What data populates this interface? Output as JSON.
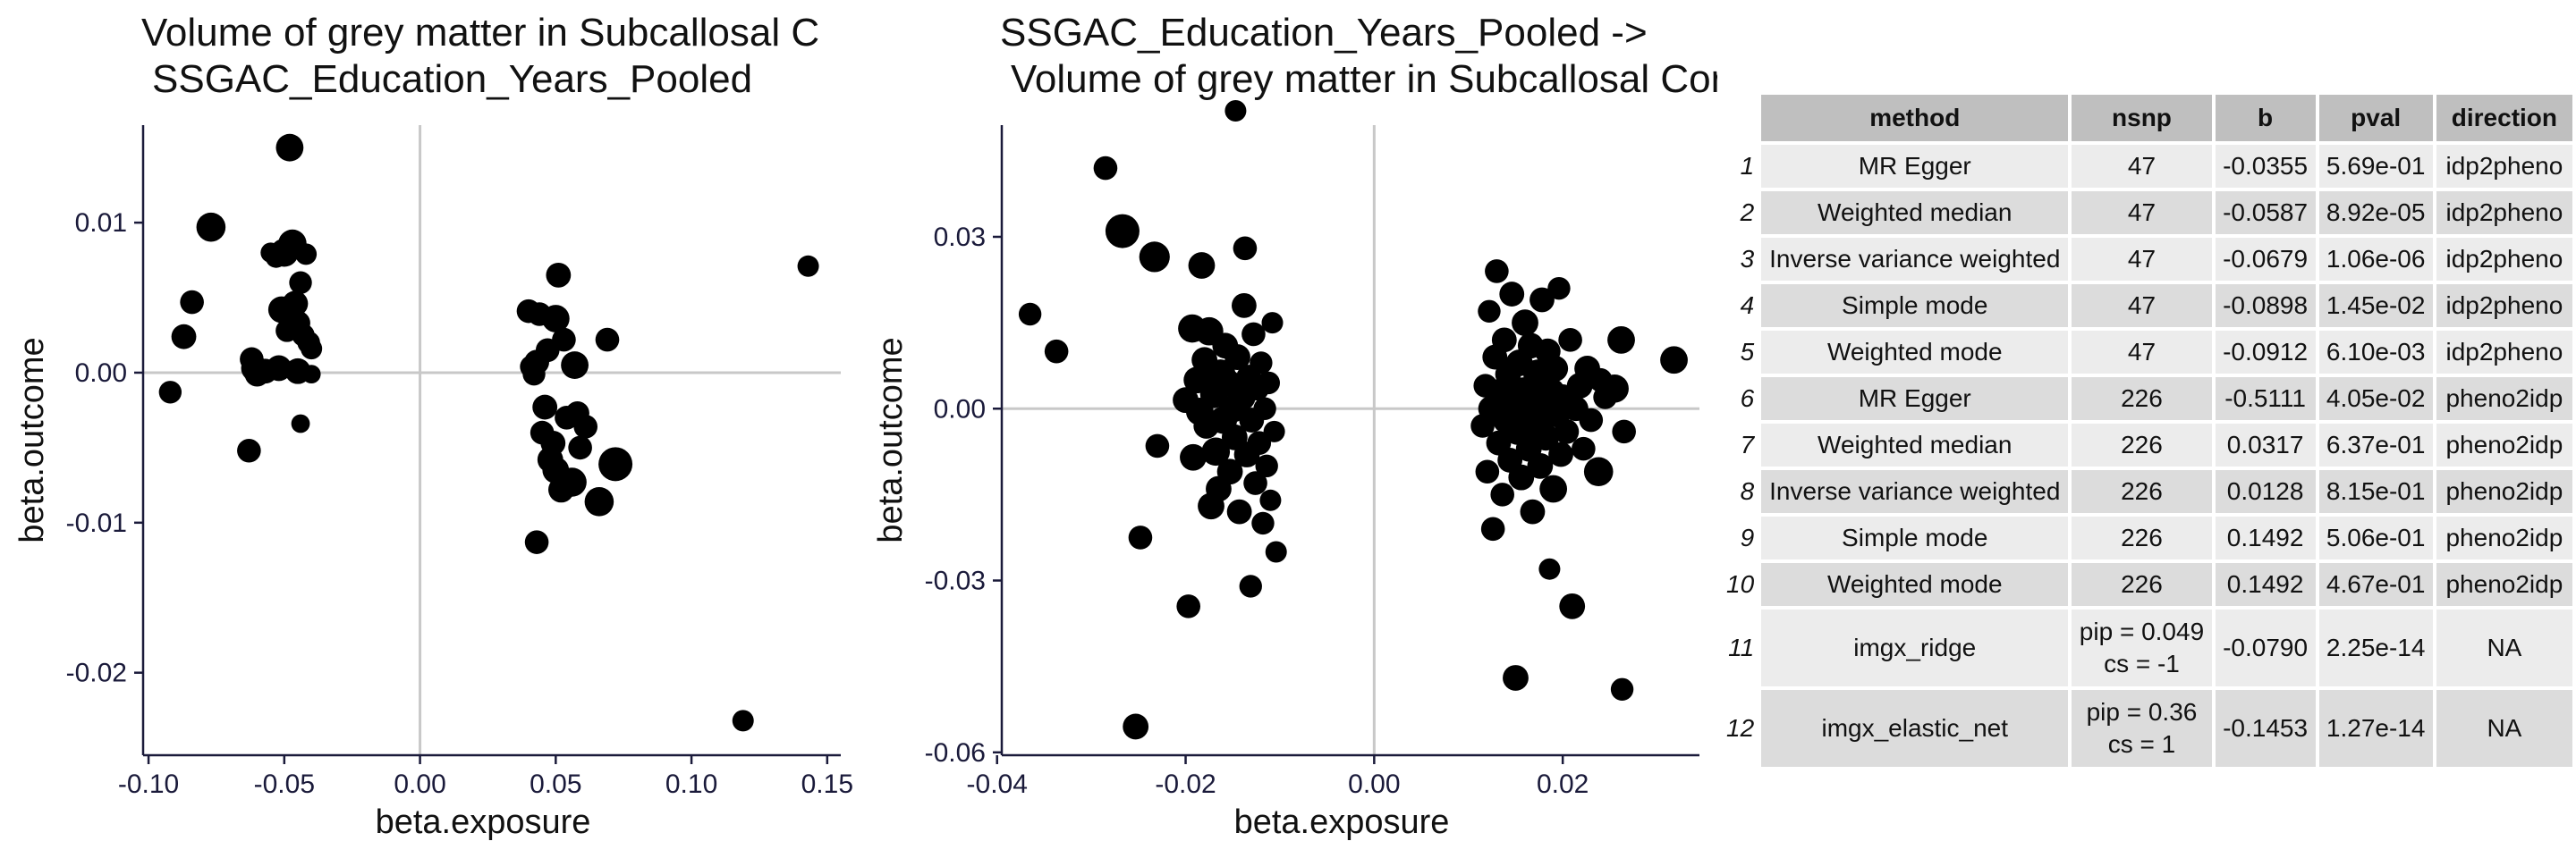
{
  "chart_data": [
    {
      "type": "scatter",
      "title": [
        "Volume of grey matter in Subcallosal C",
        "SSGAC_Education_Years_Pooled"
      ],
      "xlabel": "beta.exposure",
      "ylabel": "beta.outcome",
      "xlim": [
        -0.102,
        0.155
      ],
      "ylim": [
        -0.0255,
        0.0165
      ],
      "xticks": [
        -0.1,
        -0.05,
        0.0,
        0.05,
        0.1,
        0.15
      ],
      "xtick_labels": [
        "-0.10",
        "-0.05",
        "0.00",
        "0.05",
        "0.10",
        "0.15"
      ],
      "yticks": [
        -0.02,
        -0.01,
        0.0,
        0.01
      ],
      "ytick_labels": [
        "-0.02",
        "-0.01",
        "0.00",
        "0.01"
      ],
      "reference_lines": {
        "x": 0,
        "y": 0
      },
      "grid": false,
      "point_color": "#000000",
      "points": [
        {
          "x": -0.092,
          "y": -0.0013,
          "w": 0.3
        },
        {
          "x": -0.087,
          "y": 0.0024,
          "w": 0.4
        },
        {
          "x": -0.084,
          "y": 0.0047,
          "w": 0.35
        },
        {
          "x": -0.077,
          "y": 0.0097,
          "w": 0.65
        },
        {
          "x": -0.063,
          "y": -0.0052,
          "w": 0.35
        },
        {
          "x": -0.062,
          "y": 0.0009,
          "w": 0.35
        },
        {
          "x": -0.061,
          "y": 0.0003,
          "w": 0.5
        },
        {
          "x": -0.06,
          "y": -0.0001,
          "w": 0.4
        },
        {
          "x": -0.057,
          "y": 0.0001,
          "w": 0.4
        },
        {
          "x": -0.055,
          "y": 0.008,
          "w": 0.2
        },
        {
          "x": -0.053,
          "y": 0.0077,
          "w": 0.25
        },
        {
          "x": -0.052,
          "y": 0.0003,
          "w": 0.45
        },
        {
          "x": -0.051,
          "y": 0.0042,
          "w": 0.5
        },
        {
          "x": -0.05,
          "y": 0.008,
          "w": 0.6
        },
        {
          "x": -0.049,
          "y": 0.0028,
          "w": 0.3
        },
        {
          "x": -0.048,
          "y": 0.015,
          "w": 0.55
        },
        {
          "x": -0.047,
          "y": 0.0086,
          "w": 0.6
        },
        {
          "x": -0.046,
          "y": 0.0046,
          "w": 0.45
        },
        {
          "x": -0.045,
          "y": 0.0033,
          "w": 0.4
        },
        {
          "x": -0.045,
          "y": 0.0001,
          "w": 0.45
        },
        {
          "x": -0.044,
          "y": 0.006,
          "w": 0.3
        },
        {
          "x": -0.044,
          "y": -0.0034,
          "w": 0.15
        },
        {
          "x": -0.043,
          "y": 0.0025,
          "w": 0.3
        },
        {
          "x": -0.042,
          "y": 0.0079,
          "w": 0.25
        },
        {
          "x": -0.041,
          "y": 0.002,
          "w": 0.3
        },
        {
          "x": -0.04,
          "y": 0.0016,
          "w": 0.25
        },
        {
          "x": -0.04,
          "y": -0.0001,
          "w": 0.15
        },
        {
          "x": 0.04,
          "y": 0.0041,
          "w": 0.35
        },
        {
          "x": 0.041,
          "y": 0.0004,
          "w": 0.3
        },
        {
          "x": 0.042,
          "y": -0.0001,
          "w": 0.3
        },
        {
          "x": 0.043,
          "y": -0.0113,
          "w": 0.35
        },
        {
          "x": 0.043,
          "y": 0.0007,
          "w": 0.4
        },
        {
          "x": 0.044,
          "y": 0.0039,
          "w": 0.35
        },
        {
          "x": 0.045,
          "y": -0.004,
          "w": 0.35
        },
        {
          "x": 0.046,
          "y": -0.0023,
          "w": 0.4
        },
        {
          "x": 0.047,
          "y": 0.0015,
          "w": 0.35
        },
        {
          "x": 0.048,
          "y": -0.0058,
          "w": 0.45
        },
        {
          "x": 0.049,
          "y": -0.0047,
          "w": 0.4
        },
        {
          "x": 0.05,
          "y": 0.0036,
          "w": 0.55
        },
        {
          "x": 0.05,
          "y": -0.0065,
          "w": 0.5
        },
        {
          "x": 0.051,
          "y": 0.0065,
          "w": 0.4
        },
        {
          "x": 0.052,
          "y": -0.0078,
          "w": 0.45
        },
        {
          "x": 0.053,
          "y": 0.0022,
          "w": 0.35
        },
        {
          "x": 0.054,
          "y": -0.003,
          "w": 0.35
        },
        {
          "x": 0.056,
          "y": -0.0073,
          "w": 0.65
        },
        {
          "x": 0.057,
          "y": 0.0005,
          "w": 0.55
        },
        {
          "x": 0.058,
          "y": -0.0027,
          "w": 0.35
        },
        {
          "x": 0.059,
          "y": -0.005,
          "w": 0.35
        },
        {
          "x": 0.061,
          "y": -0.0036,
          "w": 0.35
        },
        {
          "x": 0.066,
          "y": -0.0086,
          "w": 0.65
        },
        {
          "x": 0.069,
          "y": 0.0022,
          "w": 0.35
        },
        {
          "x": 0.072,
          "y": -0.0061,
          "w": 1.0
        },
        {
          "x": 0.119,
          "y": -0.0232,
          "w": 0.25
        },
        {
          "x": 0.143,
          "y": 0.0071,
          "w": 0.25
        }
      ]
    },
    {
      "type": "scatter",
      "title": [
        "SSGAC_Education_Years_Pooled ->",
        "Volume of grey matter in Subcallosal Cortex (left)"
      ],
      "xlabel": "beta.exposure",
      "ylabel": "beta.outcome",
      "xlim": [
        -0.0395,
        0.0345
      ],
      "ylim": [
        -0.0605,
        0.0495
      ],
      "xticks": [
        -0.04,
        -0.02,
        0.0,
        0.02
      ],
      "xtick_labels": [
        "-0.04",
        "-0.02",
        "0.00",
        "0.02"
      ],
      "yticks": [
        -0.06,
        -0.03,
        0.0,
        0.03
      ],
      "ytick_labels": [
        "-0.06",
        "-0.03",
        "0.00",
        "0.03"
      ],
      "reference_lines": {
        "x": 0,
        "y": 0
      },
      "grid": false,
      "point_color": "#000000",
      "points": [
        {
          "x": -0.0365,
          "y": 0.0165,
          "w": 0.3
        },
        {
          "x": -0.0337,
          "y": 0.01,
          "w": 0.35
        },
        {
          "x": -0.0285,
          "y": 0.042,
          "w": 0.35
        },
        {
          "x": -0.0267,
          "y": 0.031,
          "w": 1.0
        },
        {
          "x": -0.0253,
          "y": -0.0555,
          "w": 0.45
        },
        {
          "x": -0.0248,
          "y": -0.0225,
          "w": 0.35
        },
        {
          "x": -0.0233,
          "y": 0.0265,
          "w": 0.75
        },
        {
          "x": -0.023,
          "y": -0.0065,
          "w": 0.35
        },
        {
          "x": -0.02,
          "y": 0.0015,
          "w": 0.45
        },
        {
          "x": -0.0197,
          "y": -0.0345,
          "w": 0.35
        },
        {
          "x": -0.0193,
          "y": 0.014,
          "w": 0.6
        },
        {
          "x": -0.0192,
          "y": -0.0085,
          "w": 0.5
        },
        {
          "x": -0.0188,
          "y": 0.005,
          "w": 0.5
        },
        {
          "x": -0.0185,
          "y": -0.0005,
          "w": 0.55
        },
        {
          "x": -0.0183,
          "y": 0.025,
          "w": 0.5
        },
        {
          "x": -0.018,
          "y": 0.0085,
          "w": 0.45
        },
        {
          "x": -0.0178,
          "y": -0.003,
          "w": 0.45
        },
        {
          "x": -0.0175,
          "y": 0.0135,
          "w": 0.6
        },
        {
          "x": -0.0173,
          "y": -0.017,
          "w": 0.5
        },
        {
          "x": -0.017,
          "y": 0.0025,
          "w": 0.55
        },
        {
          "x": -0.0168,
          "y": -0.0075,
          "w": 0.6
        },
        {
          "x": -0.0165,
          "y": -0.014,
          "w": 0.45
        },
        {
          "x": -0.0163,
          "y": 0.006,
          "w": 0.7
        },
        {
          "x": -0.016,
          "y": -0.002,
          "w": 0.55
        },
        {
          "x": -0.0158,
          "y": 0.011,
          "w": 0.45
        },
        {
          "x": -0.0155,
          "y": 0.0045,
          "w": 0.5
        },
        {
          "x": -0.0153,
          "y": -0.011,
          "w": 0.45
        },
        {
          "x": -0.015,
          "y": 0.0,
          "w": 0.55
        },
        {
          "x": -0.0148,
          "y": -0.005,
          "w": 0.45
        },
        {
          "x": -0.0147,
          "y": 0.052,
          "w": 0.25
        },
        {
          "x": -0.0145,
          "y": 0.009,
          "w": 0.45
        },
        {
          "x": -0.0143,
          "y": -0.018,
          "w": 0.4
        },
        {
          "x": -0.014,
          "y": 0.002,
          "w": 0.5
        },
        {
          "x": -0.0138,
          "y": 0.018,
          "w": 0.4
        },
        {
          "x": -0.0137,
          "y": 0.028,
          "w": 0.35
        },
        {
          "x": -0.0135,
          "y": -0.008,
          "w": 0.45
        },
        {
          "x": -0.0133,
          "y": 0.0055,
          "w": 0.4
        },
        {
          "x": -0.0131,
          "y": -0.031,
          "w": 0.3
        },
        {
          "x": -0.013,
          "y": -0.002,
          "w": 0.4
        },
        {
          "x": -0.0128,
          "y": 0.013,
          "w": 0.35
        },
        {
          "x": -0.0126,
          "y": -0.013,
          "w": 0.35
        },
        {
          "x": -0.0124,
          "y": 0.0035,
          "w": 0.35
        },
        {
          "x": -0.0122,
          "y": -0.006,
          "w": 0.35
        },
        {
          "x": -0.012,
          "y": 0.008,
          "w": 0.3
        },
        {
          "x": -0.0118,
          "y": -0.02,
          "w": 0.3
        },
        {
          "x": -0.0116,
          "y": 0.0,
          "w": 0.3
        },
        {
          "x": -0.0114,
          "y": -0.01,
          "w": 0.3
        },
        {
          "x": -0.0112,
          "y": 0.0045,
          "w": 0.3
        },
        {
          "x": -0.011,
          "y": -0.016,
          "w": 0.25
        },
        {
          "x": -0.0108,
          "y": 0.015,
          "w": 0.25
        },
        {
          "x": -0.0106,
          "y": -0.004,
          "w": 0.25
        },
        {
          "x": -0.0104,
          "y": -0.025,
          "w": 0.25
        },
        {
          "x": 0.0115,
          "y": -0.003,
          "w": 0.35
        },
        {
          "x": 0.0118,
          "y": 0.004,
          "w": 0.35
        },
        {
          "x": 0.012,
          "y": -0.011,
          "w": 0.35
        },
        {
          "x": 0.0122,
          "y": 0.017,
          "w": 0.3
        },
        {
          "x": 0.0124,
          "y": 0.0,
          "w": 0.45
        },
        {
          "x": 0.0126,
          "y": -0.021,
          "w": 0.35
        },
        {
          "x": 0.0128,
          "y": 0.009,
          "w": 0.4
        },
        {
          "x": 0.013,
          "y": 0.024,
          "w": 0.35
        },
        {
          "x": 0.0132,
          "y": -0.006,
          "w": 0.4
        },
        {
          "x": 0.0134,
          "y": 0.003,
          "w": 0.45
        },
        {
          "x": 0.0136,
          "y": -0.015,
          "w": 0.35
        },
        {
          "x": 0.0138,
          "y": 0.012,
          "w": 0.4
        },
        {
          "x": 0.014,
          "y": -0.002,
          "w": 0.5
        },
        {
          "x": 0.0142,
          "y": 0.006,
          "w": 0.45
        },
        {
          "x": 0.0144,
          "y": -0.009,
          "w": 0.4
        },
        {
          "x": 0.0146,
          "y": 0.02,
          "w": 0.4
        },
        {
          "x": 0.0148,
          "y": 0.001,
          "w": 0.55
        },
        {
          "x": 0.015,
          "y": -0.047,
          "w": 0.45
        },
        {
          "x": 0.0152,
          "y": -0.004,
          "w": 0.5
        },
        {
          "x": 0.0154,
          "y": 0.008,
          "w": 0.5
        },
        {
          "x": 0.0156,
          "y": -0.012,
          "w": 0.45
        },
        {
          "x": 0.0158,
          "y": 0.003,
          "w": 0.6
        },
        {
          "x": 0.016,
          "y": 0.015,
          "w": 0.5
        },
        {
          "x": 0.0162,
          "y": -0.001,
          "w": 0.5
        },
        {
          "x": 0.0164,
          "y": -0.007,
          "w": 0.45
        },
        {
          "x": 0.0166,
          "y": 0.011,
          "w": 0.45
        },
        {
          "x": 0.0168,
          "y": -0.018,
          "w": 0.4
        },
        {
          "x": 0.017,
          "y": 0.004,
          "w": 0.55
        },
        {
          "x": 0.0172,
          "y": -0.003,
          "w": 0.5
        },
        {
          "x": 0.0174,
          "y": 0.006,
          "w": 0.7
        },
        {
          "x": 0.0176,
          "y": -0.01,
          "w": 0.45
        },
        {
          "x": 0.0178,
          "y": 0.019,
          "w": 0.4
        },
        {
          "x": 0.018,
          "y": 0.0,
          "w": 0.6
        },
        {
          "x": 0.0182,
          "y": -0.005,
          "w": 0.5
        },
        {
          "x": 0.0184,
          "y": 0.01,
          "w": 0.45
        },
        {
          "x": 0.0186,
          "y": -0.028,
          "w": 0.25
        },
        {
          "x": 0.0188,
          "y": 0.003,
          "w": 0.5
        },
        {
          "x": 0.019,
          "y": -0.014,
          "w": 0.55
        },
        {
          "x": 0.0192,
          "y": 0.007,
          "w": 0.45
        },
        {
          "x": 0.0194,
          "y": -0.001,
          "w": 0.45
        },
        {
          "x": 0.0196,
          "y": 0.021,
          "w": 0.3
        },
        {
          "x": 0.0198,
          "y": -0.008,
          "w": 0.4
        },
        {
          "x": 0.02,
          "y": 0.002,
          "w": 0.45
        },
        {
          "x": 0.0204,
          "y": -0.004,
          "w": 0.4
        },
        {
          "x": 0.0208,
          "y": 0.012,
          "w": 0.35
        },
        {
          "x": 0.021,
          "y": -0.0345,
          "w": 0.45
        },
        {
          "x": 0.0214,
          "y": 0.0,
          "w": 0.4
        },
        {
          "x": 0.0218,
          "y": 0.004,
          "w": 0.45
        },
        {
          "x": 0.0222,
          "y": -0.007,
          "w": 0.35
        },
        {
          "x": 0.0226,
          "y": 0.007,
          "w": 0.45
        },
        {
          "x": 0.023,
          "y": -0.002,
          "w": 0.35
        },
        {
          "x": 0.0238,
          "y": -0.011,
          "w": 0.65
        },
        {
          "x": 0.024,
          "y": 0.005,
          "w": 0.35
        },
        {
          "x": 0.0245,
          "y": 0.002,
          "w": 0.35
        },
        {
          "x": 0.0255,
          "y": 0.0035,
          "w": 0.6
        },
        {
          "x": 0.0262,
          "y": 0.012,
          "w": 0.55
        },
        {
          "x": 0.0263,
          "y": -0.049,
          "w": 0.3
        },
        {
          "x": 0.0265,
          "y": -0.004,
          "w": 0.35
        },
        {
          "x": 0.0318,
          "y": 0.0085,
          "w": 0.55
        }
      ]
    },
    {
      "type": "table",
      "header": {
        "method": "method",
        "nsnp": "nsnp",
        "b": "b",
        "pval": "pval",
        "direction": "direction"
      },
      "rows": [
        {
          "idx": "1",
          "method": "MR Egger",
          "nsnp": [
            "47"
          ],
          "b": "-0.0355",
          "pval": "5.69e-01",
          "direction": "idp2pheno"
        },
        {
          "idx": "2",
          "method": "Weighted median",
          "nsnp": [
            "47"
          ],
          "b": "-0.0587",
          "pval": "8.92e-05",
          "direction": "idp2pheno"
        },
        {
          "idx": "3",
          "method": "Inverse variance weighted",
          "nsnp": [
            "47"
          ],
          "b": "-0.0679",
          "pval": "1.06e-06",
          "direction": "idp2pheno"
        },
        {
          "idx": "4",
          "method": "Simple mode",
          "nsnp": [
            "47"
          ],
          "b": "-0.0898",
          "pval": "1.45e-02",
          "direction": "idp2pheno"
        },
        {
          "idx": "5",
          "method": "Weighted mode",
          "nsnp": [
            "47"
          ],
          "b": "-0.0912",
          "pval": "6.10e-03",
          "direction": "idp2pheno"
        },
        {
          "idx": "6",
          "method": "MR Egger",
          "nsnp": [
            "226"
          ],
          "b": "-0.5111",
          "pval": "4.05e-02",
          "direction": "pheno2idp"
        },
        {
          "idx": "7",
          "method": "Weighted median",
          "nsnp": [
            "226"
          ],
          "b": "0.0317",
          "pval": "6.37e-01",
          "direction": "pheno2idp"
        },
        {
          "idx": "8",
          "method": "Inverse variance weighted",
          "nsnp": [
            "226"
          ],
          "b": "0.0128",
          "pval": "8.15e-01",
          "direction": "pheno2idp"
        },
        {
          "idx": "9",
          "method": "Simple mode",
          "nsnp": [
            "226"
          ],
          "b": "0.1492",
          "pval": "5.06e-01",
          "direction": "pheno2idp"
        },
        {
          "idx": "10",
          "method": "Weighted mode",
          "nsnp": [
            "226"
          ],
          "b": "0.1492",
          "pval": "4.67e-01",
          "direction": "pheno2idp"
        },
        {
          "idx": "11",
          "method": "imgx_ridge",
          "nsnp": [
            "pip = 0.049",
            "cs = -1"
          ],
          "b": "-0.0790",
          "pval": "2.25e-14",
          "direction": "NA"
        },
        {
          "idx": "12",
          "method": "imgx_elastic_net",
          "nsnp": [
            "pip = 0.36",
            "cs = 1"
          ],
          "b": "-0.1453",
          "pval": "1.27e-14",
          "direction": "NA"
        }
      ]
    }
  ]
}
